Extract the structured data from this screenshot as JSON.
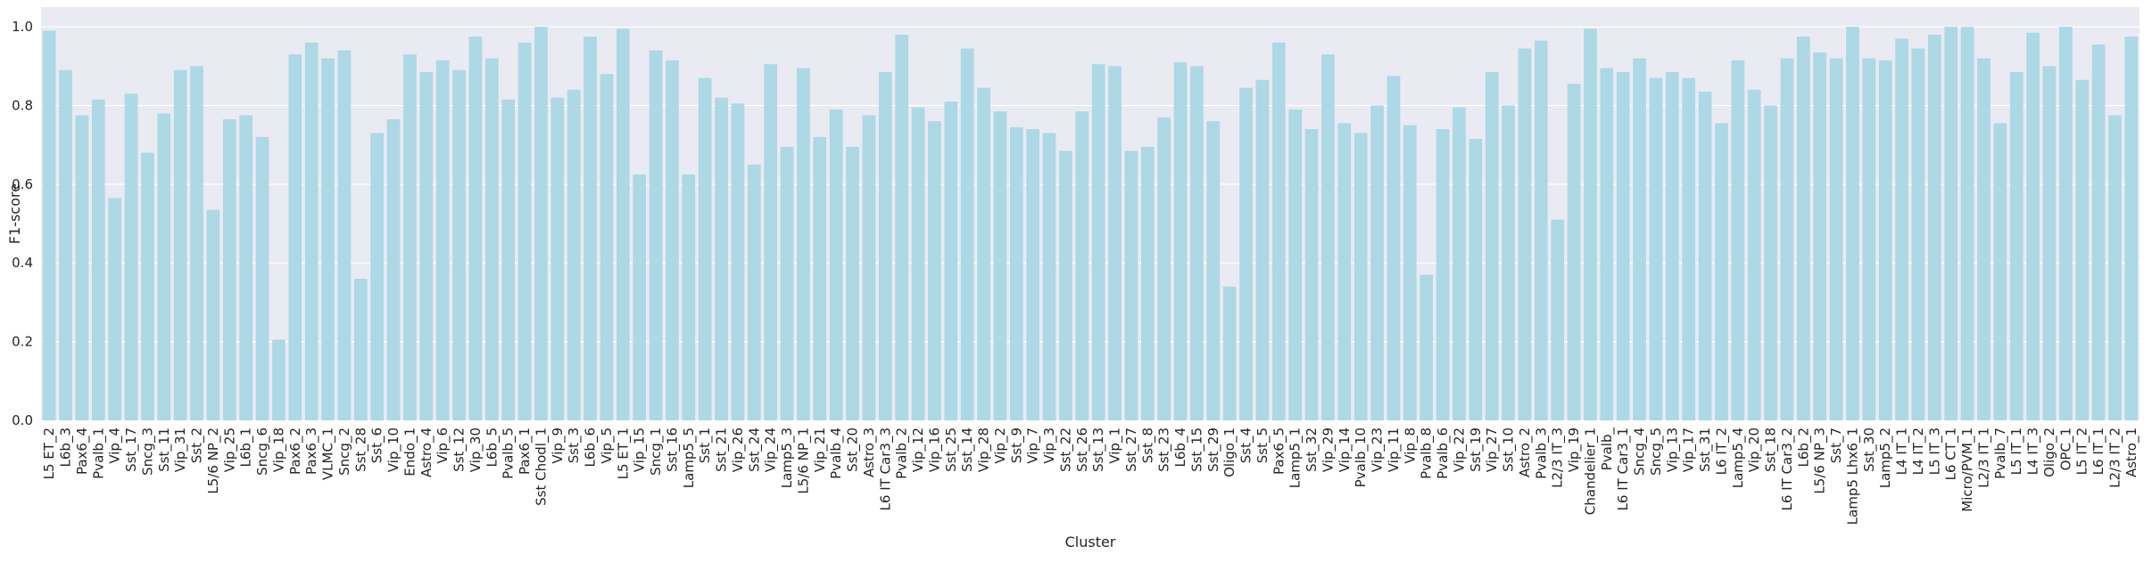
{
  "chart_data": {
    "type": "bar",
    "title": "",
    "xlabel": "Cluster",
    "ylabel": "F1-score",
    "ylim": [
      0,
      1.05
    ],
    "yticks": [
      0.0,
      0.2,
      0.4,
      0.6,
      0.8,
      1.0
    ],
    "ytick_labels": [
      "0.0",
      "0.2",
      "0.4",
      "0.6",
      "0.8",
      "1.0"
    ],
    "grid": true,
    "bar_color": "#add8e6",
    "background_color": "#eaeaf2",
    "categories": [
      "L5 ET_2",
      "L6b_3",
      "Pax6_4",
      "Pvalb_1",
      "Vip_4",
      "Sst_17",
      "Sncg_3",
      "Sst_11",
      "Vip_31",
      "Sst_2",
      "L5/6 NP_2",
      "Vip_25",
      "L6b_1",
      "Sncg_6",
      "Vip_18",
      "Pax6_2",
      "Pax6_3",
      "VLMC_1",
      "Sncg_2",
      "Sst_28",
      "Sst_6",
      "Vip_10",
      "Endo_1",
      "Astro_4",
      "Vip_6",
      "Sst_12",
      "Vip_30",
      "L6b_5",
      "Pvalb_5",
      "Pax6_1",
      "Sst Chodl_1",
      "Vip_9",
      "Sst_3",
      "L6b_6",
      "Vip_5",
      "L5 ET_1",
      "Vip_15",
      "Sncg_1",
      "Sst_16",
      "Lamp5_5",
      "Sst_1",
      "Sst_21",
      "Vip_26",
      "Sst_24",
      "Vip_24",
      "Lamp5_3",
      "L5/6 NP_1",
      "Vip_21",
      "Pvalb_4",
      "Sst_20",
      "Astro_3",
      "L6 IT Car3_3",
      "Pvalb_2",
      "Vip_12",
      "Vip_16",
      "Sst_25",
      "Sst_14",
      "Vip_28",
      "Vip_2",
      "Sst_9",
      "Vip_7",
      "Vip_3",
      "Sst_22",
      "Sst_26",
      "Sst_13",
      "Vip_1",
      "Sst_27",
      "Sst_8",
      "Sst_23",
      "L6b_4",
      "Sst_15",
      "Sst_29",
      "Oligo_1",
      "Sst_4",
      "Sst_5",
      "Pax6_5",
      "Lamp5_1",
      "Sst_32",
      "Vip_29",
      "Vip_14",
      "Pvalb_10",
      "Vip_23",
      "Vip_11",
      "Vip_8",
      "Pvalb_8",
      "Pvalb_6",
      "Vip_22",
      "Sst_19",
      "Vip_27",
      "Sst_10",
      "Astro_2",
      "Pvalb_3",
      "L2/3 IT_3",
      "Vip_19",
      "Chandelier_1",
      "Pvalb_",
      "L6 IT Car3_1",
      "Sncg_4",
      "Sncg_5",
      "Vip_13",
      "Vip_17",
      "Sst_31",
      "L6 IT_2",
      "Lamp5_4",
      "Vip_20",
      "Sst_18",
      "L6 IT Car3_2",
      "L6b_2",
      "L5/6 NP_3",
      "Sst_7",
      "Lamp5 Lhx6_1",
      "Sst_30",
      "Lamp5_2",
      "L4 IT_1",
      "L4 IT_2",
      "L5 IT_3",
      "L6 CT_1",
      "Micro/PVM_1",
      "L2/3 IT_1",
      "Pvalb_7",
      "L5 IT_1",
      "L4 IT_3",
      "Oligo_2",
      "OPC_1",
      "L5 IT_2",
      "L6 IT_1",
      "L2/3 IT_2",
      "Astro_1"
    ],
    "values": [
      0.99,
      0.89,
      0.775,
      0.815,
      0.565,
      0.83,
      0.68,
      0.78,
      0.89,
      0.9,
      0.535,
      0.765,
      0.775,
      0.72,
      0.205,
      0.93,
      0.96,
      0.92,
      0.94,
      0.36,
      0.73,
      0.765,
      0.93,
      0.885,
      0.915,
      0.89,
      0.975,
      0.92,
      0.815,
      0.96,
      1.0,
      0.82,
      0.84,
      0.975,
      0.88,
      0.995,
      0.625,
      0.94,
      0.915,
      0.625,
      0.87,
      0.82,
      0.805,
      0.65,
      0.905,
      0.695,
      0.895,
      0.72,
      0.79,
      0.695,
      0.775,
      0.885,
      0.98,
      0.795,
      0.76,
      0.81,
      0.945,
      0.845,
      0.785,
      0.745,
      0.74,
      0.73,
      0.685,
      0.785,
      0.905,
      0.9,
      0.685,
      0.695,
      0.77,
      0.91,
      0.9,
      0.76,
      0.34,
      0.845,
      0.865,
      0.96,
      0.79,
      0.74,
      0.93,
      0.755,
      0.73,
      0.8,
      0.875,
      0.75,
      0.37,
      0.74,
      0.795,
      0.715,
      0.885,
      0.8,
      0.945,
      0.965,
      0.51,
      0.855,
      0.995,
      0.895,
      0.885,
      0.92,
      0.87,
      0.885,
      0.87,
      0.835,
      0.755,
      0.915,
      0.84,
      0.8,
      0.92,
      0.975,
      0.935,
      0.92,
      1.0,
      0.92,
      0.915,
      0.97,
      0.945,
      0.98,
      1.0,
      1.0,
      0.92,
      0.755,
      0.885,
      0.985,
      0.9,
      1.0,
      0.865,
      0.955,
      0.775,
      0.975
    ]
  }
}
